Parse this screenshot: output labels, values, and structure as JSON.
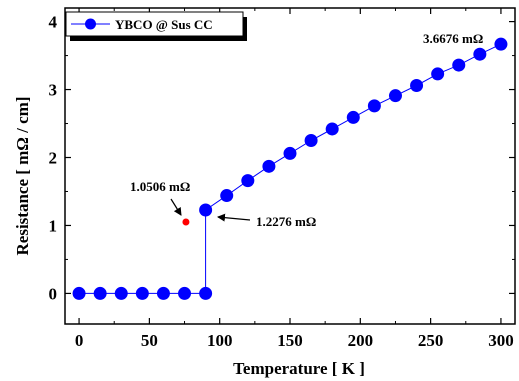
{
  "chart_data": {
    "type": "line",
    "xlabel": "Temperature [ K ]",
    "ylabel": "Resistance [ mΩ / cm]",
    "xlim": [
      -10,
      310
    ],
    "ylim": [
      -0.45,
      4.2
    ],
    "xticks": [
      0,
      50,
      100,
      150,
      200,
      250,
      300
    ],
    "yticks": [
      0,
      1,
      2,
      3,
      4
    ],
    "grid": false,
    "legend_position": "top-left",
    "series": [
      {
        "name": "YBCO @ Sus CC",
        "color": "#0000ff",
        "marker": "circle",
        "x": [
          0,
          15,
          30,
          45,
          60,
          75,
          90,
          90,
          105,
          120,
          135,
          150,
          165,
          180,
          195,
          210,
          225,
          240,
          255,
          270,
          285,
          300
        ],
        "y": [
          0,
          0,
          0,
          0,
          0,
          0,
          0,
          1.2276,
          1.44,
          1.66,
          1.87,
          2.06,
          2.25,
          2.42,
          2.59,
          2.76,
          2.91,
          3.06,
          3.23,
          3.36,
          3.52,
          3.6676
        ]
      }
    ],
    "highlight_point": {
      "x": 76,
      "y": 1.0506,
      "color": "#ff0000"
    },
    "annotations": [
      {
        "text": "1.0506 mΩ",
        "x": 76,
        "y": 1.0506
      },
      {
        "text": "1.2276 mΩ",
        "x": 90,
        "y": 1.2276
      },
      {
        "text": "3.6676 mΩ",
        "x": 300,
        "y": 3.6676
      }
    ]
  }
}
